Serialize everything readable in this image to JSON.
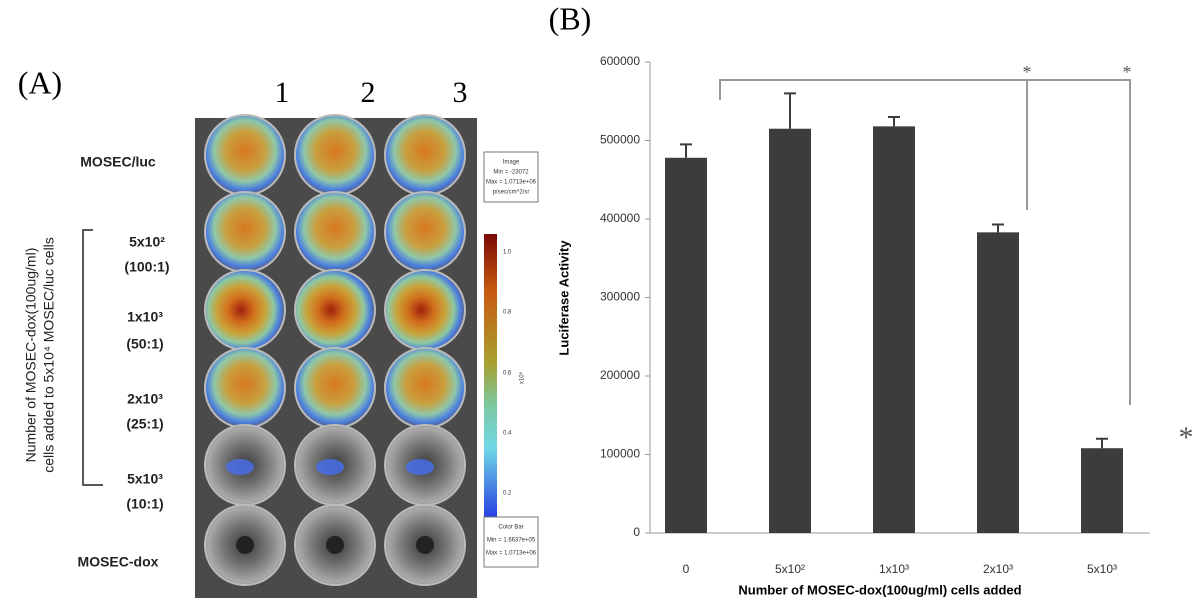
{
  "panel_a": {
    "label": "(A)",
    "columns": [
      "1",
      "2",
      "3"
    ],
    "rows": [
      {
        "lines": [
          "MOSEC/luc"
        ]
      },
      {
        "lines": [
          "5x10²",
          "(100:1)"
        ]
      },
      {
        "lines": [
          "1x10³",
          "(50:1)"
        ]
      },
      {
        "lines": [
          "2x10³",
          "(25:1)"
        ]
      },
      {
        "lines": [
          "5x10³",
          "(10:1)"
        ]
      },
      {
        "lines": [
          "MOSEC-dox"
        ]
      }
    ],
    "axis_label": [
      "Number of MOSEC-dox(100ug/ml)",
      "cells added to 5x10⁴ MOSEC/luc cells"
    ],
    "image_box": [
      "Image",
      "Min = -23072",
      "Max = 1.0713e+06",
      "p/sec/cm^2/sr"
    ],
    "colorbar_ticks": [
      "1.0",
      "0.8",
      "0.6",
      "0.4",
      "0.2"
    ],
    "colorbar_unit": "x10⁶",
    "colorbar_box": [
      "Color Bar",
      "Min = 1.6637e+05",
      "Max = 1.0713e+06"
    ]
  },
  "chart_data": {
    "type": "bar",
    "panel_label": "(B)",
    "y_label": "Luciferase Activity",
    "x_label": "Number of MOSEC-dox(100ug/ml) cells added",
    "categories": [
      "0",
      "5x10²",
      "1x10³",
      "2x10³",
      "5x10³"
    ],
    "series": [
      {
        "color": "#3c3c3c",
        "values": [
          478000,
          515000,
          518000,
          383000,
          108000
        ],
        "errors": [
          17000,
          45000,
          12000,
          10000,
          12000
        ]
      }
    ],
    "ylim": [
      0,
      600000
    ],
    "yticks": [
      0,
      100000,
      200000,
      300000,
      400000,
      500000,
      600000
    ],
    "annotations": [
      "*",
      "*",
      "*"
    ]
  }
}
